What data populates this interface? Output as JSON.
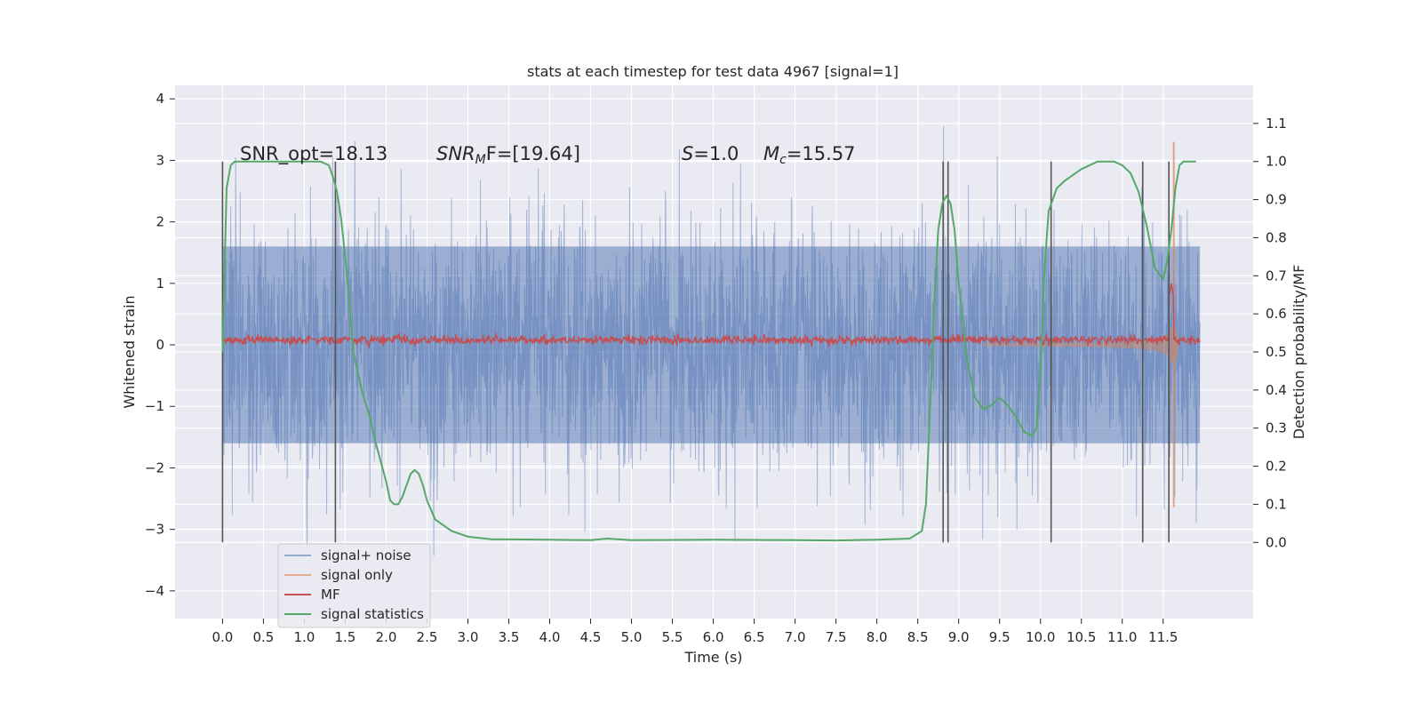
{
  "chart_data": {
    "type": "line",
    "title": "stats at each timestep for test data 4967 [signal=1]",
    "xlabel": "Time (s)",
    "ylabel": "Whitened strain",
    "y2label": "Detection probability/MF",
    "xlim": [
      -0.58,
      12.6
    ],
    "ylim": [
      -4.45,
      4.22
    ],
    "y2lim": [
      -0.2,
      1.2
    ],
    "x_ticks": [
      0.0,
      0.5,
      1.0,
      1.5,
      2.0,
      2.5,
      3.0,
      3.5,
      4.0,
      4.5,
      5.0,
      5.5,
      6.0,
      6.5,
      7.0,
      7.5,
      8.0,
      8.5,
      9.0,
      9.5,
      10.0,
      10.5,
      11.0,
      11.5
    ],
    "x_tick_labels": [
      "0.0",
      "0.5",
      "1.0",
      "1.5",
      "2.0",
      "2.5",
      "3.0",
      "3.5",
      "4.0",
      "4.5",
      "5.0",
      "5.5",
      "6.0",
      "6.5",
      "7.0",
      "7.5",
      "8.0",
      "8.5",
      "9.0",
      "9.5",
      "10.0",
      "10.5",
      "11.0",
      "11.5"
    ],
    "y_ticks": [
      4,
      3,
      2,
      1,
      0,
      -1,
      -2,
      -3,
      -4
    ],
    "y_tick_labels": [
      "4",
      "3",
      "2",
      "1",
      "0",
      "−1",
      "−2",
      "−3",
      "−4"
    ],
    "y2_ticks": [
      1.1,
      1.0,
      0.9,
      0.8,
      0.7,
      0.6,
      0.5,
      0.4,
      0.3,
      0.2,
      0.1,
      0.0
    ],
    "y2_tick_labels": [
      "1.1",
      "1.0",
      "0.9",
      "0.8",
      "0.7",
      "0.6",
      "0.5",
      "0.4",
      "0.3",
      "0.2",
      "0.1",
      "0.0"
    ],
    "grid": true,
    "legend_position": "lower-left",
    "legend": [
      "signal+ noise",
      "signal only",
      "MF",
      "signal statistics"
    ],
    "colors": {
      "noise": "#4c72b0",
      "signal": "#dd8452",
      "mf": "#c44e52",
      "stat": "#55a868",
      "vline": "#555555",
      "grid": "#ffffff",
      "background": "#eaeaf2"
    },
    "annotations": {
      "snr_opt": "SNR_opt=18.13",
      "snr_mf_name": "SNR",
      "snr_mf_sub": "M",
      "snr_mf_rest": "F=[19.64]",
      "s_name": "S",
      "s_rest": "=1.0",
      "mc_name": "M",
      "mc_sub": "c",
      "mc_rest": "=15.57"
    },
    "vertical_lines_x": [
      0.0,
      1.38,
      8.81,
      8.87,
      10.13,
      11.25,
      11.57
    ],
    "signal_statistics": {
      "x": [
        0.0,
        0.05,
        0.1,
        0.15,
        0.2,
        0.3,
        0.5,
        0.8,
        1.0,
        1.2,
        1.3,
        1.35,
        1.4,
        1.45,
        1.5,
        1.55,
        1.6,
        1.7,
        1.8,
        1.85,
        1.9,
        2.0,
        2.05,
        2.1,
        2.15,
        2.2,
        2.3,
        2.35,
        2.4,
        2.45,
        2.5,
        2.6,
        2.8,
        3.0,
        3.3,
        3.5,
        4.0,
        4.5,
        4.7,
        5.0,
        6.0,
        7.0,
        7.5,
        8.0,
        8.4,
        8.55,
        8.6,
        8.65,
        8.7,
        8.75,
        8.8,
        8.85,
        8.9,
        8.95,
        9.0,
        9.1,
        9.2,
        9.3,
        9.4,
        9.5,
        9.6,
        9.7,
        9.8,
        9.9,
        9.95,
        10.0,
        10.05,
        10.1,
        10.2,
        10.3,
        10.5,
        10.7,
        10.9,
        11.0,
        11.1,
        11.2,
        11.3,
        11.4,
        11.5,
        11.55,
        11.6,
        11.65,
        11.7,
        11.75,
        11.9
      ],
      "y": [
        0.5,
        0.93,
        0.99,
        1.0,
        1.0,
        1.0,
        1.0,
        1.0,
        1.0,
        1.0,
        0.99,
        0.96,
        0.92,
        0.85,
        0.75,
        0.63,
        0.5,
        0.4,
        0.33,
        0.28,
        0.24,
        0.16,
        0.11,
        0.1,
        0.1,
        0.12,
        0.18,
        0.19,
        0.18,
        0.15,
        0.11,
        0.06,
        0.03,
        0.015,
        0.008,
        0.008,
        0.007,
        0.006,
        0.01,
        0.006,
        0.007,
        0.006,
        0.005,
        0.007,
        0.01,
        0.03,
        0.1,
        0.35,
        0.62,
        0.82,
        0.89,
        0.91,
        0.89,
        0.82,
        0.68,
        0.48,
        0.38,
        0.35,
        0.36,
        0.38,
        0.36,
        0.33,
        0.29,
        0.28,
        0.3,
        0.45,
        0.72,
        0.87,
        0.93,
        0.95,
        0.98,
        1.0,
        1.0,
        0.99,
        0.97,
        0.92,
        0.83,
        0.72,
        0.69,
        0.74,
        0.82,
        0.93,
        0.99,
        1.0,
        1.0
      ]
    },
    "noise_series": {
      "name": "signal+ noise",
      "x_range": [
        0.0,
        11.95
      ],
      "envelope_y": [
        -1.6,
        1.6
      ],
      "spike_max_y": 3.8,
      "spike_min_y": -4.05
    },
    "signal_series": {
      "name": "signal only",
      "x_range": [
        7.5,
        11.7
      ],
      "peak_x": 11.63,
      "peak_y": 3.3
    },
    "mf_series": {
      "name": "MF",
      "x_range": [
        0.0,
        11.95
      ],
      "level_y": 0.08,
      "peak_x": 11.6,
      "peak_y": 1.0
    }
  }
}
